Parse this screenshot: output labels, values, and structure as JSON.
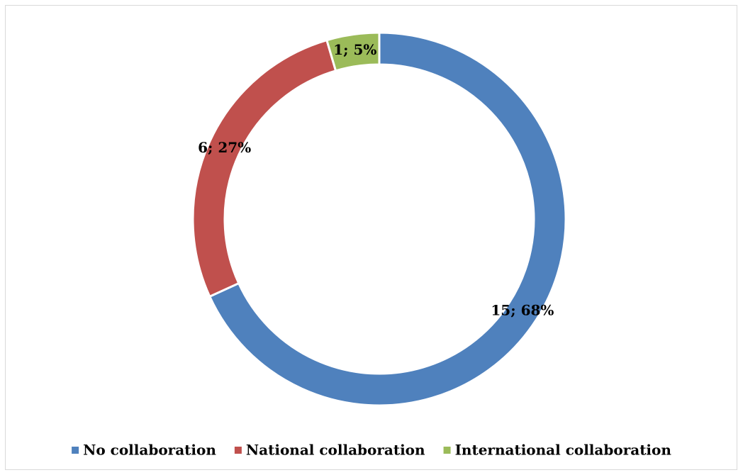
{
  "chart_data": {
    "type": "donut",
    "categories": [
      "No collaboration",
      "National collaboration",
      "International collaboration"
    ],
    "values": [
      15,
      6,
      1
    ],
    "value_labels": [
      "15; 68%",
      "6; 27%",
      "1; 5%"
    ],
    "colors": [
      "#4f81bd",
      "#c0504d",
      "#9bbb59"
    ],
    "legend": "bottom"
  }
}
